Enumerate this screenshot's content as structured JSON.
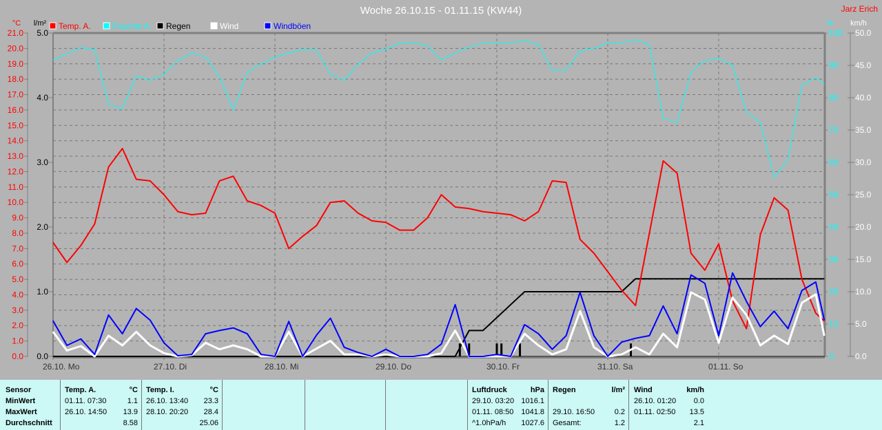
{
  "title": "Woche 26.10.15 - 01.11.15 (KW44)",
  "author": "Jarz Erich",
  "colors": {
    "temp": "#ff0000",
    "humidity": "#00ffff",
    "rain": "#000000",
    "wind": "#ffffff",
    "gust": "#0000ff",
    "background": "#b4b4b4",
    "table": "#ccf8f6"
  },
  "chart_data": {
    "type": "line",
    "title": "Woche 26.10.15 - 01.11.15 (KW44)",
    "legend": {
      "placement": "top",
      "entries": [
        "Temp. A.",
        "Feuchte A.",
        "Regen",
        "Wind",
        "Windböen"
      ]
    },
    "grid": true,
    "axes": {
      "temp": {
        "unit": "°C",
        "range": [
          0,
          21
        ],
        "ticks": [
          "0.0",
          "1.0",
          "2.0",
          "3.0",
          "4.0",
          "5.0",
          "6.0",
          "7.0",
          "8.0",
          "9.0",
          "10.0",
          "11.0",
          "12.0",
          "13.0",
          "14.0",
          "15.0",
          "16.0",
          "17.0",
          "18.0",
          "19.0",
          "20.0",
          "21.0"
        ]
      },
      "rain": {
        "unit": "l/m²",
        "range": [
          0,
          5
        ],
        "ticks": [
          "0.0",
          "1.0",
          "2.0",
          "3.0",
          "4.0",
          "5.0"
        ]
      },
      "humidity": {
        "unit": "%",
        "range": [
          0,
          100
        ],
        "ticks": [
          "0",
          "10",
          "20",
          "30",
          "40",
          "50",
          "60",
          "70",
          "80",
          "90",
          "100"
        ]
      },
      "wind": {
        "unit": "km/h",
        "range": [
          0,
          50
        ],
        "ticks": [
          "0.0",
          "5.0",
          "10.0",
          "15.0",
          "20.0",
          "25.0",
          "30.0",
          "35.0",
          "40.0",
          "45.0",
          "50.0"
        ]
      }
    },
    "x_ticks": [
      "26.10. Mo",
      "27.10. Di",
      "28.10. Mi",
      "29.10. Do",
      "30.10. Fr",
      "31.10. Sa",
      "01.11. So"
    ],
    "x": [
      "26.10. 00:00",
      "26.10. 03:00",
      "26.10. 06:00",
      "26.10. 09:00",
      "26.10. 12:00",
      "26.10. 15:00",
      "26.10. 18:00",
      "26.10. 21:00",
      "27.10. 00:00",
      "27.10. 03:00",
      "27.10. 06:00",
      "27.10. 09:00",
      "27.10. 12:00",
      "27.10. 15:00",
      "27.10. 18:00",
      "27.10. 21:00",
      "28.10. 00:00",
      "28.10. 03:00",
      "28.10. 06:00",
      "28.10. 09:00",
      "28.10. 12:00",
      "28.10. 15:00",
      "28.10. 18:00",
      "28.10. 21:00",
      "29.10. 00:00",
      "29.10. 03:00",
      "29.10. 06:00",
      "29.10. 09:00",
      "29.10. 12:00",
      "29.10. 15:00",
      "29.10. 18:00",
      "29.10. 21:00",
      "30.10. 00:00",
      "30.10. 03:00",
      "30.10. 06:00",
      "30.10. 09:00",
      "30.10. 12:00",
      "30.10. 15:00",
      "30.10. 18:00",
      "30.10. 21:00",
      "31.10. 00:00",
      "31.10. 03:00",
      "31.10. 06:00",
      "31.10. 09:00",
      "31.10. 12:00",
      "31.10. 15:00",
      "31.10. 18:00",
      "31.10. 21:00",
      "01.11. 00:00",
      "01.11. 03:00",
      "01.11. 06:00",
      "01.11. 09:00",
      "01.11. 12:00",
      "01.11. 15:00",
      "01.11. 18:00",
      "01.11. 21:00",
      "01.11. 22:50"
    ],
    "series": [
      {
        "name": "Temp. A.",
        "axis": "temp",
        "color": "#ff0000",
        "values": [
          7.4,
          6.1,
          7.2,
          8.6,
          12.3,
          13.5,
          11.5,
          11.4,
          10.5,
          9.4,
          9.2,
          9.3,
          11.4,
          11.7,
          10.1,
          9.8,
          9.3,
          7.0,
          7.8,
          8.5,
          10.0,
          10.1,
          9.3,
          8.8,
          8.7,
          8.2,
          8.2,
          9.0,
          10.5,
          9.7,
          9.6,
          9.4,
          9.3,
          9.2,
          8.8,
          9.4,
          11.4,
          11.3,
          7.6,
          6.7,
          5.5,
          4.3,
          3.3,
          8.0,
          12.7,
          11.9,
          6.7,
          5.6,
          7.3,
          3.6,
          1.8,
          7.9,
          10.3,
          9.5,
          5.0,
          2.8,
          2.3
        ]
      },
      {
        "name": "Feuchte A.",
        "axis": "humidity",
        "color": "#00ffff",
        "values": [
          91.7,
          93.6,
          95.5,
          94.9,
          77.9,
          76.6,
          86.8,
          85.3,
          87.2,
          91.5,
          93.8,
          92.6,
          86.4,
          76.2,
          87.9,
          90.4,
          92.6,
          93.8,
          94.9,
          94.7,
          87.2,
          85.3,
          90.4,
          93.8,
          95.1,
          96.8,
          97.0,
          96.0,
          91.7,
          93.8,
          95.7,
          96.8,
          97.0,
          97.0,
          97.6,
          96.4,
          88.5,
          88.5,
          94.5,
          95.3,
          97.0,
          97.0,
          97.9,
          96.4,
          73.6,
          72.3,
          87.9,
          91.5,
          92.1,
          90.0,
          75.5,
          72.3,
          55.3,
          60.9,
          84.0,
          86.2,
          84.3
        ]
      },
      {
        "name": "Regen",
        "axis": "rain",
        "color": "#000000",
        "values": [
          0,
          0,
          0,
          0,
          0,
          0,
          0,
          0,
          0,
          0,
          0,
          0,
          0,
          0,
          0,
          0,
          0,
          0,
          0,
          0,
          0,
          0,
          0,
          0,
          0,
          0,
          0,
          0,
          0,
          0,
          0.4,
          0.4,
          0.6,
          0.8,
          1.0,
          1.0,
          1.0,
          1.0,
          1.0,
          1.0,
          1.0,
          1.0,
          1.2,
          1.2,
          1.2,
          1.2,
          1.2,
          1.2,
          1.2,
          1.2,
          1.2,
          1.2,
          1.2,
          1.2,
          1.2,
          1.2,
          1.2
        ]
      },
      {
        "name": "Wind",
        "axis": "wind",
        "color": "#ffffff",
        "values": [
          3.8,
          0.9,
          1.6,
          0,
          3.2,
          1.7,
          3.8,
          1.7,
          0.5,
          0,
          0.2,
          2.1,
          1.1,
          1.7,
          1.1,
          0,
          0,
          3.8,
          0,
          1.2,
          2.4,
          0.3,
          0.3,
          0,
          0.3,
          0,
          0,
          0,
          0.5,
          4.0,
          0,
          0,
          0,
          0,
          3.5,
          1.7,
          0.3,
          1.1,
          7.0,
          1.4,
          0,
          0.3,
          1.4,
          0.3,
          3.5,
          1.4,
          9.9,
          8.8,
          2.1,
          9.1,
          6.4,
          1.7,
          3.2,
          1.9,
          8.3,
          9.6,
          3.2
        ]
      },
      {
        "name": "Windböen",
        "axis": "wind",
        "color": "#0000ff",
        "values": [
          5.5,
          1.7,
          2.7,
          0.3,
          6.4,
          3.5,
          7.4,
          5.6,
          2.1,
          0.1,
          0.3,
          3.5,
          4.0,
          4.4,
          3.5,
          0.3,
          0,
          5.4,
          0,
          3.3,
          5.9,
          1.4,
          0.6,
          0,
          1.1,
          0,
          0,
          0.3,
          1.9,
          8.0,
          0,
          0,
          0.3,
          0,
          4.9,
          3.5,
          1.1,
          3.2,
          9.9,
          3.2,
          0,
          2.2,
          2.8,
          3.2,
          7.8,
          3.5,
          12.6,
          11.3,
          3.2,
          12.9,
          8.5,
          4.6,
          7.0,
          4.3,
          10.2,
          11.5,
          5.6
        ]
      }
    ],
    "rain_bars": [
      {
        "x": "29.10. 16:00",
        "value": 0.2
      },
      {
        "x": "29.10. 18:00",
        "value": 0.2
      },
      {
        "x": "30.10. 00:00",
        "value": 0.2
      },
      {
        "x": "30.10. 01:00",
        "value": 0.2
      },
      {
        "x": "30.10. 05:00",
        "value": 0.2
      },
      {
        "x": "31.10. 05:00",
        "value": 0.2
      }
    ]
  },
  "table": {
    "row_labels": [
      "Sensor",
      "MinWert",
      "MaxWert",
      "Durchschnitt"
    ],
    "temp_a": {
      "header": "Temp. A.",
      "unit": "°C",
      "min_time": "01.11.  07:30",
      "min": "1.1",
      "max_time": "26.10.  14:50",
      "max": "13.9",
      "avg": "8.58"
    },
    "temp_i": {
      "header": "Temp. I.",
      "unit": "°C",
      "min_time": "26.10.  13:40",
      "min": "23.3",
      "max_time": "28.10.  20:20",
      "max": "28.4",
      "avg": "25.06"
    },
    "pressure": {
      "header": "Luftdruck",
      "unit": "hPa",
      "min_time": "29.10.  03:20",
      "min": "1016.1",
      "max_time": "01.11.  08:50",
      "max": "1041.8",
      "trend": "^1.0hPa/h",
      "avg": "1027.6"
    },
    "rain": {
      "header": "Regen",
      "unit": "l/m²",
      "max_time": "29.10.  16:50",
      "max": "0.2",
      "total_label": "Gesamt:",
      "total": "1.2"
    },
    "wind": {
      "header": "Wind",
      "unit": "km/h",
      "min_time": "26.10.  01:20",
      "min": "0.0",
      "max_time": "01.11.  02:50",
      "max": "13.5",
      "avg": "2.1"
    }
  }
}
